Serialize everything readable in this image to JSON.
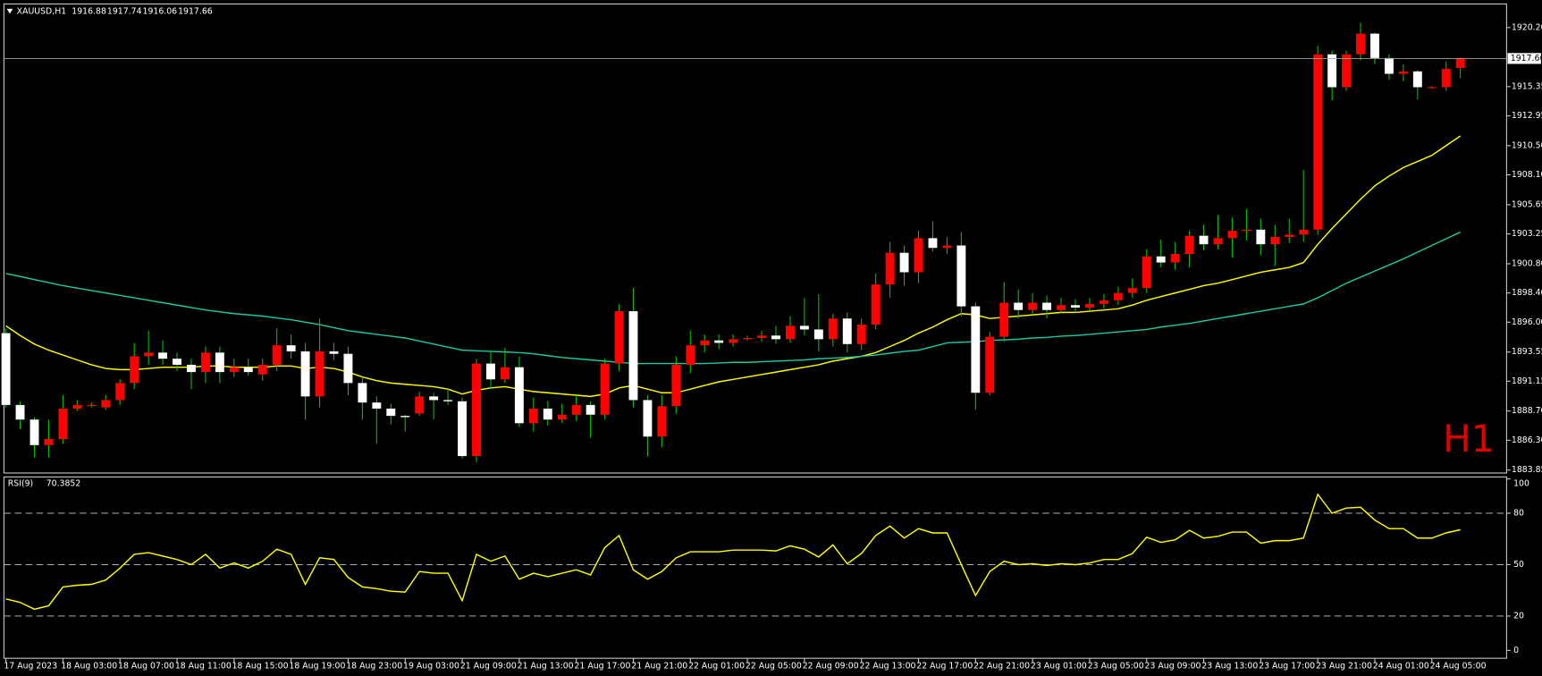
{
  "chart_data": [
    {
      "type": "candlestick",
      "symbol": "XAUUSD,H1",
      "watermark": "H1",
      "categories": [
        "17 Aug 2023",
        null,
        null,
        null,
        "18 Aug 03:00",
        null,
        null,
        null,
        "18 Aug 07:00",
        null,
        null,
        null,
        "18 Aug 11:00",
        null,
        null,
        null,
        "18 Aug 15:00",
        null,
        null,
        null,
        "18 Aug 19:00",
        null,
        null,
        null,
        "18 Aug 23:00",
        null,
        null,
        null,
        "19 Aug 03:00",
        null,
        null,
        null,
        "21 Aug 09:00",
        null,
        null,
        null,
        "21 Aug 13:00",
        null,
        null,
        null,
        "21 Aug 17:00",
        null,
        null,
        null,
        "21 Aug 21:00",
        null,
        null,
        null,
        "22 Aug 01:00",
        null,
        null,
        null,
        "22 Aug 05:00",
        null,
        null,
        null,
        "22 Aug 09:00",
        null,
        null,
        null,
        "22 Aug 13:00",
        null,
        null,
        null,
        "22 Aug 17:00",
        null,
        null,
        null,
        "22 Aug 21:00",
        null,
        null,
        null,
        "23 Aug 01:00",
        null,
        null,
        null,
        "23 Aug 05:00",
        null,
        null,
        null,
        "23 Aug 09:00",
        null,
        null,
        null,
        "23 Aug 13:00",
        null,
        null,
        null,
        "23 Aug 17:00",
        null,
        null,
        null,
        "23 Aug 21:00",
        null,
        null,
        null,
        "24 Aug 01:00",
        null,
        null,
        null,
        "24 Aug 05:00",
        null,
        null
      ],
      "open": [
        1895.1,
        1889.2,
        1888.0,
        1885.9,
        1886.4,
        1888.9,
        1889.2,
        1889.0,
        1889.6,
        1891.0,
        1893.2,
        1893.5,
        1893.0,
        1892.5,
        1891.9,
        1893.5,
        1891.9,
        1892.3,
        1891.7,
        1892.5,
        1894.1,
        1893.6,
        1889.9,
        1893.6,
        1893.4,
        1891.0,
        1889.4,
        1888.9,
        1888.3,
        1888.5,
        1889.9,
        1889.6,
        1889.5,
        1885.0,
        1892.6,
        1891.3,
        1892.3,
        1887.7,
        1888.9,
        1888.0,
        1888.4,
        1889.2,
        1888.4,
        1892.6,
        1896.9,
        1889.6,
        1886.6,
        1889.1,
        1892.5,
        1894.1,
        1894.5,
        1894.3,
        1894.6,
        1894.7,
        1894.9,
        1894.6,
        1895.7,
        1895.4,
        1894.6,
        1896.3,
        1894.2,
        1895.8,
        1899.1,
        1901.7,
        1900.1,
        1902.9,
        1902.1,
        1902.3,
        1897.3,
        1890.2,
        1894.8,
        1897.6,
        1897.0,
        1897.6,
        1897.0,
        1897.4,
        1897.2,
        1897.5,
        1897.8,
        1898.4,
        1898.8,
        1901.4,
        1900.9,
        1901.6,
        1903.1,
        1902.4,
        1902.9,
        1903.5,
        1903.6,
        1902.4,
        1903.0,
        1903.2,
        1903.6,
        1918.0,
        1915.3,
        1918.0,
        1919.7,
        1917.7,
        1916.4,
        1916.6,
        1915.3,
        1915.3,
        1916.88
      ],
      "high": [
        1895.5,
        1889.5,
        1888.2,
        1888.0,
        1890.0,
        1889.6,
        1889.4,
        1890.0,
        1891.3,
        1894.3,
        1895.3,
        1894.5,
        1893.5,
        1893.0,
        1894.0,
        1894.0,
        1893.0,
        1893.0,
        1893.0,
        1895.5,
        1895.0,
        1894.3,
        1896.3,
        1894.3,
        1894.0,
        1891.5,
        1889.9,
        1889.3,
        1888.4,
        1890.3,
        1890.2,
        1890.5,
        1889.8,
        1893.0,
        1893.7,
        1893.9,
        1893.2,
        1889.8,
        1889.5,
        1889.3,
        1890.0,
        1889.5,
        1893.0,
        1897.5,
        1898.8,
        1890.0,
        1890.0,
        1893.2,
        1895.3,
        1895.0,
        1895.0,
        1895.0,
        1894.9,
        1895.3,
        1895.7,
        1896.5,
        1898.0,
        1898.3,
        1896.7,
        1896.8,
        1896.3,
        1900.0,
        1902.6,
        1902.3,
        1903.5,
        1904.3,
        1903.0,
        1903.4,
        1897.6,
        1895.2,
        1899.3,
        1898.7,
        1898.4,
        1898.2,
        1898.0,
        1897.9,
        1898.0,
        1898.3,
        1898.9,
        1899.6,
        1902.0,
        1902.8,
        1902.6,
        1903.5,
        1904.0,
        1904.8,
        1904.6,
        1905.3,
        1904.5,
        1904.0,
        1904.5,
        1908.5,
        1918.7,
        1918.3,
        1918.3,
        1920.6,
        1919.8,
        1918.0,
        1917.2,
        1916.7,
        1915.4,
        1917.4,
        1917.74
      ],
      "low": [
        1889.0,
        1887.2,
        1884.9,
        1884.9,
        1886.0,
        1888.7,
        1889.0,
        1888.8,
        1889.2,
        1890.5,
        1892.5,
        1892.5,
        1892.0,
        1890.5,
        1891.0,
        1891.0,
        1891.5,
        1891.6,
        1891.2,
        1892.0,
        1893.0,
        1888.0,
        1889.0,
        1892.9,
        1890.0,
        1888.0,
        1886.0,
        1887.6,
        1887.0,
        1888.3,
        1888.0,
        1889.2,
        1884.8,
        1884.5,
        1890.5,
        1891.0,
        1887.4,
        1887.0,
        1887.5,
        1887.7,
        1887.9,
        1886.5,
        1888.0,
        1892.0,
        1889.0,
        1885.0,
        1885.7,
        1888.5,
        1891.8,
        1893.5,
        1893.8,
        1894.0,
        1894.5,
        1894.4,
        1894.2,
        1894.3,
        1894.9,
        1893.6,
        1894.0,
        1893.5,
        1893.7,
        1895.4,
        1898.0,
        1899.0,
        1899.2,
        1901.8,
        1901.6,
        1896.5,
        1888.8,
        1890.0,
        1894.4,
        1896.3,
        1896.6,
        1896.3,
        1896.7,
        1896.8,
        1896.9,
        1897.1,
        1897.4,
        1898.0,
        1898.4,
        1900.5,
        1900.3,
        1900.5,
        1901.9,
        1902.0,
        1901.3,
        1902.7,
        1901.5,
        1900.6,
        1902.5,
        1902.6,
        1903.2,
        1914.2,
        1915.0,
        1917.5,
        1917.2,
        1915.9,
        1915.8,
        1914.3,
        1915.2,
        1915.0,
        1916.06
      ],
      "close": [
        1889.2,
        1888.0,
        1885.9,
        1886.4,
        1888.9,
        1889.2,
        1889.2,
        1889.6,
        1891.0,
        1893.2,
        1893.5,
        1893.0,
        1892.5,
        1891.9,
        1893.5,
        1891.9,
        1892.3,
        1891.9,
        1892.5,
        1894.1,
        1893.6,
        1889.9,
        1893.6,
        1893.4,
        1891.0,
        1889.4,
        1888.9,
        1888.3,
        1888.2,
        1889.9,
        1889.6,
        1889.5,
        1885.0,
        1892.6,
        1891.3,
        1892.3,
        1887.7,
        1888.9,
        1888.0,
        1888.4,
        1889.2,
        1888.4,
        1892.6,
        1896.9,
        1889.6,
        1886.6,
        1889.1,
        1892.5,
        1894.1,
        1894.5,
        1894.3,
        1894.6,
        1894.7,
        1894.9,
        1894.6,
        1895.7,
        1895.4,
        1894.6,
        1896.3,
        1894.2,
        1895.8,
        1899.1,
        1901.7,
        1900.1,
        1902.9,
        1902.1,
        1902.3,
        1897.3,
        1890.2,
        1894.8,
        1897.6,
        1897.0,
        1897.6,
        1897.0,
        1897.4,
        1897.2,
        1897.5,
        1897.8,
        1898.4,
        1898.8,
        1901.4,
        1900.9,
        1901.6,
        1903.1,
        1902.4,
        1902.9,
        1903.5,
        1903.6,
        1902.4,
        1903.0,
        1903.2,
        1903.6,
        1918.0,
        1915.3,
        1918.0,
        1919.7,
        1917.7,
        1916.4,
        1916.6,
        1915.3,
        1915.3,
        1916.8,
        1917.66
      ],
      "bull_color": "#ff0000",
      "bear_color": "#ffffff",
      "wick_color": "#00c000",
      "moving_averages": [
        {
          "color": "#ffff00",
          "values": [
            1895.7,
            1894.9,
            1894.2,
            1893.7,
            1893.3,
            1892.9,
            1892.5,
            1892.2,
            1892.1,
            1892.1,
            1892.2,
            1892.3,
            1892.3,
            1892.3,
            1892.4,
            1892.4,
            1892.3,
            1892.3,
            1892.3,
            1892.4,
            1892.4,
            1892.2,
            1892.3,
            1892.2,
            1891.9,
            1891.5,
            1891.2,
            1891.0,
            1890.9,
            1890.8,
            1890.7,
            1890.5,
            1890.1,
            1890.4,
            1890.6,
            1890.7,
            1890.5,
            1890.3,
            1890.2,
            1890.1,
            1890.0,
            1889.9,
            1890.1,
            1890.6,
            1890.8,
            1890.5,
            1890.2,
            1890.2,
            1890.5,
            1890.8,
            1891.1,
            1891.3,
            1891.5,
            1891.7,
            1891.9,
            1892.1,
            1892.3,
            1892.5,
            1892.8,
            1893.0,
            1893.2,
            1893.5,
            1894.0,
            1894.5,
            1895.1,
            1895.6,
            1896.2,
            1896.7,
            1896.6,
            1896.3,
            1896.4,
            1896.5,
            1896.6,
            1896.7,
            1896.8,
            1896.8,
            1896.9,
            1897.0,
            1897.1,
            1897.4,
            1897.8,
            1898.1,
            1898.4,
            1898.7,
            1899.0,
            1899.2,
            1899.5,
            1899.8,
            1900.1,
            1900.3,
            1900.5,
            1900.9,
            1902.4,
            1903.7,
            1904.9,
            1906.1,
            1907.2,
            1908.0,
            1908.7,
            1909.2,
            1909.7,
            1910.5,
            1911.3
          ]
        },
        {
          "color": "#1ec8a0",
          "values": [
            1900.0,
            1899.75,
            1899.5,
            1899.25,
            1899.0,
            1898.8,
            1898.6,
            1898.4,
            1898.2,
            1898.0,
            1897.8,
            1897.6,
            1897.4,
            1897.2,
            1897.0,
            1896.85,
            1896.7,
            1896.6,
            1896.5,
            1896.35,
            1896.2,
            1896.0,
            1895.8,
            1895.55,
            1895.3,
            1895.15,
            1895.0,
            1894.85,
            1894.7,
            1894.45,
            1894.2,
            1893.95,
            1893.7,
            1893.65,
            1893.6,
            1893.55,
            1893.5,
            1893.4,
            1893.25,
            1893.1,
            1893.0,
            1892.9,
            1892.8,
            1892.7,
            1892.6,
            1892.6,
            1892.6,
            1892.6,
            1892.6,
            1892.6,
            1892.65,
            1892.7,
            1892.7,
            1892.75,
            1892.8,
            1892.85,
            1892.9,
            1893.0,
            1893.05,
            1893.1,
            1893.2,
            1893.3,
            1893.45,
            1893.6,
            1893.7,
            1894.0,
            1894.3,
            1894.35,
            1894.4,
            1894.5,
            1894.55,
            1894.6,
            1894.7,
            1894.75,
            1894.85,
            1894.9,
            1895.0,
            1895.1,
            1895.2,
            1895.3,
            1895.4,
            1895.6,
            1895.75,
            1895.9,
            1896.1,
            1896.3,
            1896.5,
            1896.7,
            1896.9,
            1897.1,
            1897.3,
            1897.5,
            1898.0,
            1898.6,
            1899.2,
            1899.7,
            1900.2,
            1900.7,
            1901.2,
            1901.75,
            1902.3,
            1902.85,
            1903.4
          ]
        }
      ],
      "ylim": [
        1883.61,
        1922.14
      ],
      "yticks": [
        {
          "value": 1920.2,
          "label": "1920.20"
        },
        1915.35,
        1912.95,
        {
          "value": 1910.5,
          "label": "1910.50"
        },
        {
          "value": 1908.1,
          "label": "1908.10"
        },
        1905.65,
        1903.25,
        {
          "value": 1900.8,
          "label": "1900.80"
        },
        {
          "value": 1898.4,
          "label": "1898.40"
        },
        {
          "value": 1896,
          "label": "1896.00"
        },
        1893.55,
        1891.15,
        {
          "value": 1888.7,
          "label": "1888.70"
        },
        {
          "value": 1886.3,
          "label": "1886.30"
        },
        1883.85
      ],
      "grid": false
    },
    {
      "type": "line",
      "title": "RSI(9)",
      "color": "#ffff00",
      "values": [
        30,
        28,
        24,
        26,
        37,
        38,
        38.5,
        41,
        48,
        56,
        57,
        55,
        53,
        50,
        56,
        48,
        51,
        48,
        52,
        59,
        56,
        38.5,
        54,
        53,
        42.5,
        37,
        36,
        34.5,
        34,
        46,
        45,
        45,
        29,
        56,
        52,
        55,
        41.5,
        45,
        43,
        45,
        47,
        44,
        60,
        67,
        47,
        41.5,
        46,
        54,
        57.5,
        57.5,
        57.5,
        58.5,
        58.5,
        58.5,
        58,
        61,
        59,
        54.5,
        61.5,
        50.5,
        56.5,
        67,
        72.5,
        65.5,
        71,
        68.5,
        68.5,
        50,
        32,
        46,
        52,
        50,
        50.5,
        49.5,
        50.5,
        50,
        51,
        53,
        53,
        56.5,
        66,
        63,
        64.5,
        70,
        65.5,
        66.5,
        69,
        69,
        62.5,
        64,
        64,
        65.5,
        91,
        80,
        83,
        83.5,
        76,
        71,
        71,
        65.5,
        65.5,
        68.5,
        70.3852
      ],
      "ylim": [
        0,
        100
      ],
      "yticks": [
        100,
        80,
        50,
        20,
        0
      ],
      "levels": [
        80,
        50,
        20
      ]
    }
  ]
}
